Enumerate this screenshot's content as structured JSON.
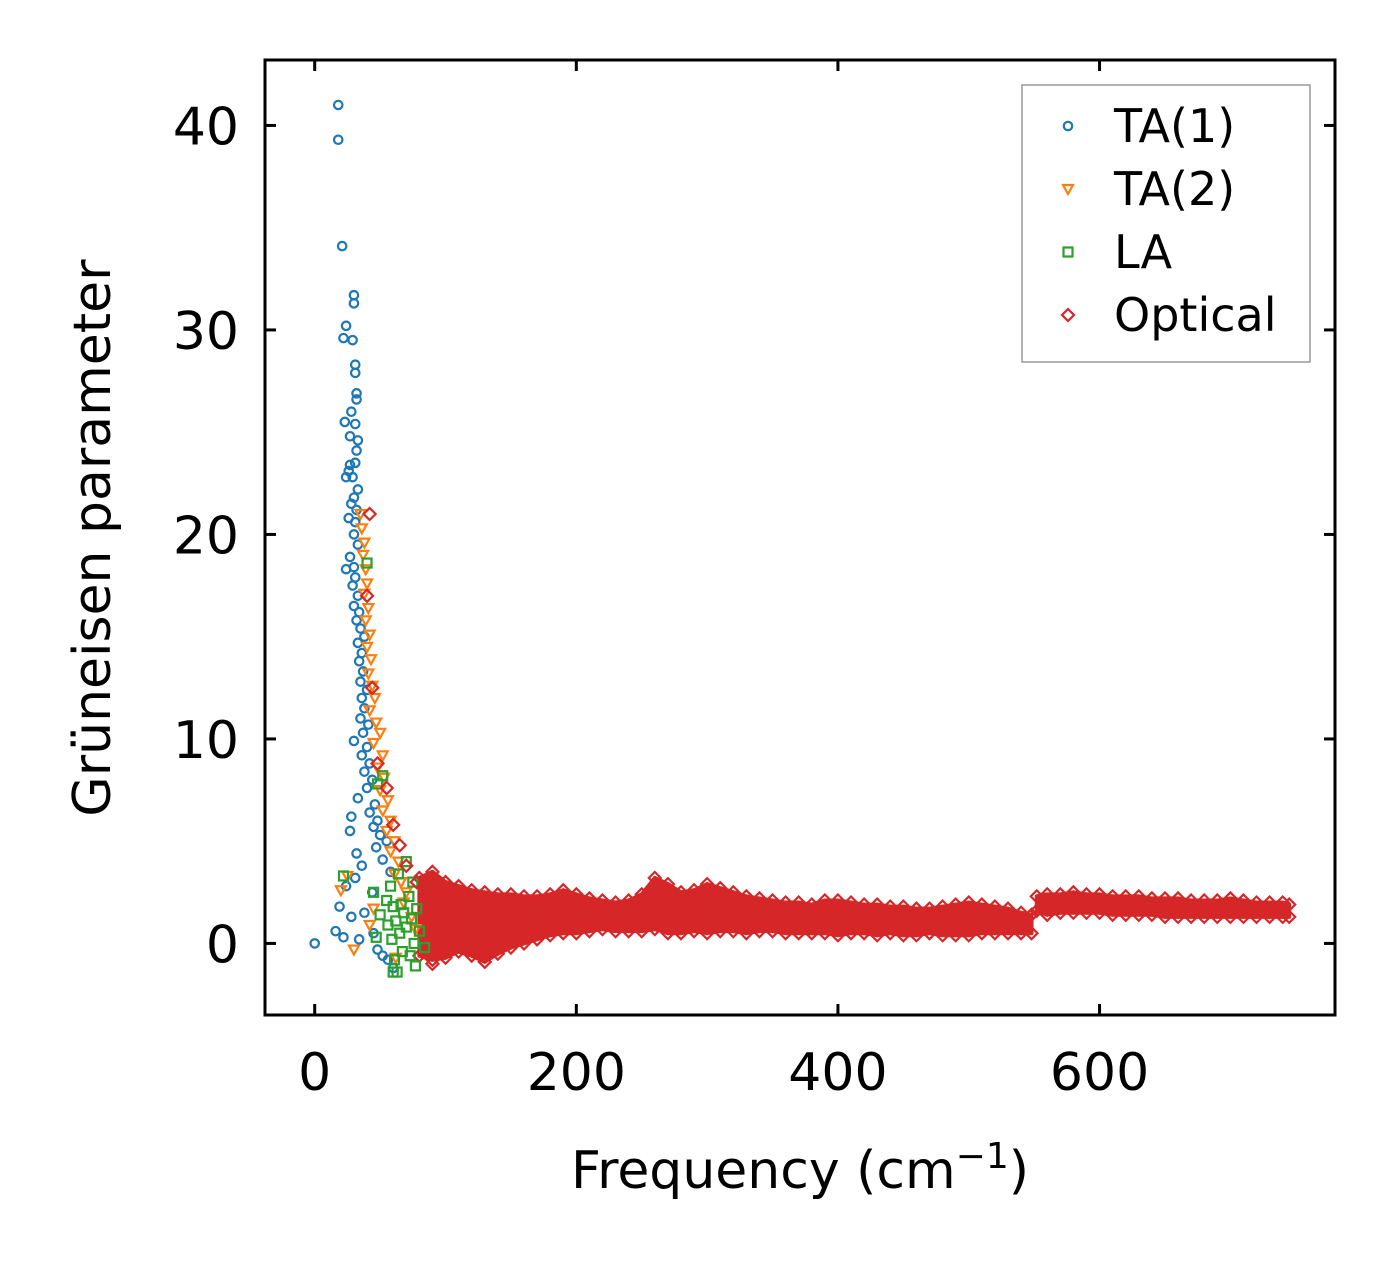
{
  "chart_data": {
    "type": "scatter",
    "title": "",
    "xlabel": "Frequency (cm",
    "xlabel_sup": "−1",
    "xlabel_close": ")",
    "ylabel": "Grüneisen parameter",
    "xlim": [
      -38,
      780
    ],
    "ylim": [
      -3.5,
      43.2
    ],
    "xticks": [
      0,
      200,
      400,
      600
    ],
    "xtick_labels": [
      "0",
      "200",
      "400",
      "600"
    ],
    "yticks": [
      0,
      10,
      20,
      30,
      40
    ],
    "ytick_labels": [
      "0",
      "10",
      "20",
      "30",
      "40"
    ],
    "legend_position": "top-right",
    "series": [
      {
        "name": "TA(1)",
        "marker": "circle",
        "color": "#1f77b4",
        "points": [
          [
            0,
            0
          ],
          [
            18,
            41.0
          ],
          [
            18,
            39.3
          ],
          [
            21,
            34.1
          ],
          [
            30,
            31.7
          ],
          [
            30,
            31.3
          ],
          [
            24,
            30.2
          ],
          [
            22,
            29.6
          ],
          [
            29,
            29.5
          ],
          [
            31,
            28.3
          ],
          [
            31,
            27.9
          ],
          [
            32,
            26.9
          ],
          [
            32,
            26.6
          ],
          [
            28,
            26.0
          ],
          [
            23,
            25.5
          ],
          [
            31,
            25.4
          ],
          [
            27,
            24.8
          ],
          [
            33,
            24.6
          ],
          [
            32,
            24.1
          ],
          [
            31,
            23.5
          ],
          [
            27,
            23.4
          ],
          [
            26,
            23.1
          ],
          [
            29,
            22.8
          ],
          [
            24,
            22.8
          ],
          [
            33,
            22.2
          ],
          [
            30,
            21.8
          ],
          [
            28,
            21.5
          ],
          [
            32,
            21.2
          ],
          [
            26,
            20.8
          ],
          [
            31,
            20.6
          ],
          [
            30,
            20.0
          ],
          [
            33,
            19.5
          ],
          [
            27,
            18.9
          ],
          [
            30,
            18.4
          ],
          [
            24,
            18.3
          ],
          [
            31,
            17.9
          ],
          [
            29,
            17.5
          ],
          [
            33,
            17.0
          ],
          [
            30,
            16.5
          ],
          [
            34,
            16.2
          ],
          [
            32,
            15.8
          ],
          [
            35,
            15.4
          ],
          [
            38,
            15.0
          ],
          [
            33,
            14.7
          ],
          [
            36,
            14.2
          ],
          [
            34,
            13.8
          ],
          [
            37,
            13.3
          ],
          [
            35,
            12.8
          ],
          [
            40,
            12.4
          ],
          [
            36,
            12.0
          ],
          [
            38,
            11.5
          ],
          [
            35,
            11.0
          ],
          [
            41,
            10.7
          ],
          [
            37,
            10.3
          ],
          [
            30,
            9.9
          ],
          [
            40,
            9.6
          ],
          [
            36,
            9.2
          ],
          [
            42,
            8.8
          ],
          [
            38,
            8.4
          ],
          [
            44,
            8.0
          ],
          [
            40,
            7.6
          ],
          [
            33,
            7.1
          ],
          [
            46,
            6.8
          ],
          [
            42,
            6.4
          ],
          [
            28,
            6.2
          ],
          [
            48,
            6.0
          ],
          [
            45,
            5.7
          ],
          [
            27,
            5.5
          ],
          [
            50,
            5.3
          ],
          [
            55,
            5.0
          ],
          [
            47,
            4.7
          ],
          [
            32,
            4.4
          ],
          [
            52,
            4.1
          ],
          [
            36,
            3.8
          ],
          [
            58,
            3.5
          ],
          [
            31,
            3.2
          ],
          [
            24,
            2.8
          ],
          [
            44,
            2.5
          ],
          [
            19,
            1.8
          ],
          [
            38,
            1.5
          ],
          [
            28,
            1.3
          ],
          [
            16,
            0.6
          ],
          [
            45,
            0.5
          ],
          [
            22,
            0.3
          ],
          [
            34,
            0.2
          ],
          [
            48,
            -0.3
          ],
          [
            52,
            -0.6
          ],
          [
            56,
            -0.8
          ],
          [
            60,
            -1.2
          ]
        ]
      },
      {
        "name": "TA(2)",
        "marker": "triangle-down",
        "color": "#ff7f0e",
        "points": [
          [
            35,
            21.0
          ],
          [
            36,
            20.3
          ],
          [
            38,
            19.6
          ],
          [
            37,
            19.0
          ],
          [
            39,
            18.3
          ],
          [
            40,
            17.6
          ],
          [
            38,
            17.1
          ],
          [
            41,
            16.4
          ],
          [
            39,
            15.8
          ],
          [
            42,
            15.1
          ],
          [
            40,
            14.5
          ],
          [
            43,
            13.9
          ],
          [
            41,
            13.2
          ],
          [
            44,
            12.6
          ],
          [
            46,
            12.0
          ],
          [
            42,
            11.4
          ],
          [
            47,
            10.8
          ],
          [
            50,
            10.3
          ],
          [
            45,
            9.8
          ],
          [
            52,
            9.2
          ],
          [
            48,
            8.6
          ],
          [
            53,
            8.1
          ],
          [
            50,
            7.5
          ],
          [
            56,
            7.0
          ],
          [
            52,
            6.5
          ],
          [
            58,
            6.0
          ],
          [
            55,
            5.5
          ],
          [
            61,
            5.0
          ],
          [
            58,
            4.5
          ],
          [
            64,
            4.0
          ],
          [
            61,
            3.4
          ],
          [
            66,
            3.0
          ],
          [
            25,
            3.3
          ],
          [
            20,
            2.6
          ],
          [
            70,
            2.5
          ],
          [
            68,
            2.0
          ],
          [
            45,
            1.7
          ],
          [
            74,
            1.3
          ],
          [
            42,
            0.9
          ],
          [
            77,
            0.7
          ],
          [
            30,
            -0.3
          ],
          [
            62,
            -0.7
          ]
        ]
      },
      {
        "name": "LA",
        "marker": "square",
        "color": "#2ca02c",
        "points": [
          [
            40,
            18.6
          ],
          [
            52,
            8.2
          ],
          [
            48,
            7.8
          ],
          [
            22,
            3.3
          ],
          [
            70,
            4.0
          ],
          [
            64,
            3.4
          ],
          [
            75,
            3.0
          ],
          [
            58,
            2.8
          ],
          [
            45,
            2.5
          ],
          [
            72,
            2.3
          ],
          [
            55,
            2.1
          ],
          [
            66,
            1.9
          ],
          [
            60,
            1.8
          ],
          [
            78,
            1.7
          ],
          [
            68,
            1.5
          ],
          [
            50,
            1.4
          ],
          [
            74,
            1.2
          ],
          [
            62,
            1.1
          ],
          [
            56,
            0.9
          ],
          [
            70,
            0.8
          ],
          [
            80,
            0.6
          ],
          [
            65,
            0.5
          ],
          [
            47,
            0.3
          ],
          [
            59,
            0.2
          ],
          [
            76,
            0.0
          ],
          [
            84,
            -0.2
          ],
          [
            67,
            -0.4
          ],
          [
            73,
            -0.6
          ],
          [
            61,
            -0.8
          ],
          [
            77,
            -1.1
          ],
          [
            63,
            -1.4
          ],
          [
            60,
            -1.4
          ]
        ]
      },
      {
        "name": "Optical",
        "marker": "diamond",
        "color": "#d62728",
        "points": [
          [
            42,
            21.0
          ],
          [
            40,
            17.0
          ],
          [
            44,
            12.5
          ],
          [
            48,
            8.8
          ],
          [
            55,
            7.6
          ],
          [
            60,
            5.8
          ],
          [
            65,
            4.8
          ],
          [
            70,
            3.8
          ],
          [
            78,
            3.0
          ],
          [
            90,
            -1.0
          ]
        ]
      }
    ],
    "optical_band": {
      "name": "Optical",
      "color": "#d62728",
      "x": [
        80,
        90,
        100,
        110,
        120,
        130,
        140,
        150,
        160,
        170,
        180,
        190,
        200,
        210,
        220,
        230,
        240,
        250,
        260,
        270,
        280,
        290,
        300,
        310,
        320,
        330,
        340,
        350,
        360,
        370,
        380,
        390,
        400,
        410,
        420,
        430,
        440,
        450,
        460,
        470,
        480,
        490,
        500,
        510,
        520,
        530,
        540,
        548,
        552,
        560,
        570,
        580,
        590,
        600,
        610,
        620,
        630,
        640,
        650,
        660,
        670,
        680,
        690,
        700,
        710,
        720,
        730,
        740,
        745
      ],
      "upper": [
        3.2,
        3.5,
        3.0,
        2.8,
        2.6,
        2.5,
        2.4,
        2.4,
        2.3,
        2.3,
        2.4,
        2.6,
        2.4,
        2.2,
        2.1,
        2.0,
        2.1,
        2.4,
        3.2,
        2.9,
        2.5,
        2.6,
        2.9,
        2.7,
        2.5,
        2.3,
        2.2,
        2.1,
        2.0,
        2.0,
        1.9,
        2.1,
        2.1,
        2.0,
        1.9,
        1.9,
        1.8,
        1.8,
        1.7,
        1.7,
        1.8,
        1.9,
        2.0,
        1.9,
        1.8,
        1.7,
        1.5,
        1.4,
        2.3,
        2.4,
        2.4,
        2.5,
        2.4,
        2.4,
        2.3,
        2.3,
        2.3,
        2.2,
        2.2,
        2.2,
        2.1,
        2.1,
        2.1,
        2.2,
        2.1,
        2.0,
        2.0,
        2.0,
        1.9
      ],
      "lower": [
        -0.6,
        -0.8,
        -0.7,
        -0.4,
        -0.6,
        -0.9,
        -0.5,
        -0.2,
        0.0,
        0.2,
        0.4,
        0.5,
        0.5,
        0.6,
        0.7,
        0.6,
        0.6,
        0.6,
        0.7,
        0.5,
        0.5,
        0.6,
        0.5,
        0.6,
        0.6,
        0.5,
        0.6,
        0.6,
        0.5,
        0.5,
        0.5,
        0.5,
        0.4,
        0.5,
        0.5,
        0.4,
        0.5,
        0.4,
        0.4,
        0.5,
        0.4,
        0.4,
        0.4,
        0.5,
        0.5,
        0.5,
        0.5,
        0.5,
        1.6,
        1.4,
        1.5,
        1.5,
        1.5,
        1.5,
        1.4,
        1.4,
        1.4,
        1.4,
        1.3,
        1.3,
        1.3,
        1.3,
        1.3,
        1.3,
        1.3,
        1.3,
        1.3,
        1.3,
        1.3
      ]
    }
  }
}
